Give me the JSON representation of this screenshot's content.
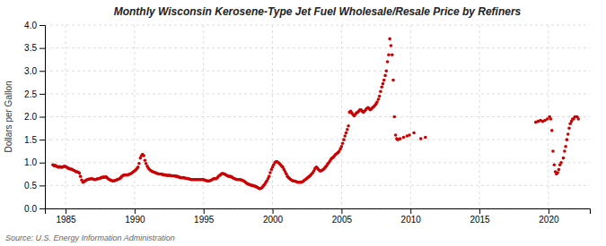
{
  "chart_data": {
    "type": "scatter",
    "title": "Monthly Wisconsin Kerosene-Type Jet Fuel Wholesale/Resale Price by Refiners",
    "y_label": "Dollars per Gallon",
    "annotations": [
      "Source: U.S. Energy Information Administration"
    ],
    "color": "#cc0000",
    "grid": true,
    "xlim": [
      1983.5,
      2023
    ],
    "ylim": [
      0.0,
      4.0
    ],
    "xticks": [
      1985,
      1990,
      1995,
      2000,
      2005,
      2010,
      2015,
      2020
    ],
    "yticks": [
      {
        "value": 0.0,
        "label": "0.0"
      },
      0.5,
      {
        "value": 1.0,
        "label": "1.0"
      },
      1.5,
      {
        "value": 2.0,
        "label": "2.0"
      },
      2.5,
      {
        "value": 3.0,
        "label": "3.0"
      },
      3.5,
      {
        "value": 4.0,
        "label": "4.0"
      }
    ],
    "x": [
      1984.08,
      1984.17,
      1984.25,
      1984.33,
      1984.42,
      1984.5,
      1984.58,
      1984.67,
      1984.75,
      1984.83,
      1984.92,
      1985.0,
      1985.08,
      1985.17,
      1985.25,
      1985.33,
      1985.42,
      1985.5,
      1985.58,
      1985.67,
      1985.75,
      1985.83,
      1985.92,
      1986.0,
      1986.08,
      1986.17,
      1986.25,
      1986.33,
      1986.42,
      1986.5,
      1986.58,
      1986.67,
      1986.75,
      1986.83,
      1986.92,
      1987.0,
      1987.08,
      1987.17,
      1987.25,
      1987.33,
      1987.42,
      1987.5,
      1987.58,
      1987.67,
      1987.75,
      1987.83,
      1987.92,
      1988.0,
      1988.08,
      1988.17,
      1988.25,
      1988.33,
      1988.42,
      1988.5,
      1988.58,
      1988.67,
      1988.75,
      1988.83,
      1988.92,
      1989.0,
      1989.08,
      1989.17,
      1989.25,
      1989.33,
      1989.42,
      1989.5,
      1989.58,
      1989.67,
      1989.75,
      1989.83,
      1989.92,
      1990.0,
      1990.08,
      1990.17,
      1990.25,
      1990.33,
      1990.42,
      1990.5,
      1990.58,
      1990.67,
      1990.75,
      1990.83,
      1990.92,
      1991.0,
      1991.08,
      1991.17,
      1991.25,
      1991.33,
      1991.42,
      1991.5,
      1991.58,
      1991.67,
      1991.75,
      1991.83,
      1991.92,
      1992.0,
      1992.08,
      1992.17,
      1992.25,
      1992.33,
      1992.42,
      1992.5,
      1992.58,
      1992.67,
      1992.75,
      1992.83,
      1992.92,
      1993.0,
      1993.08,
      1993.17,
      1993.25,
      1993.33,
      1993.42,
      1993.5,
      1993.58,
      1993.67,
      1993.75,
      1993.83,
      1993.92,
      1994.0,
      1994.08,
      1994.17,
      1994.25,
      1994.33,
      1994.42,
      1994.5,
      1994.58,
      1994.67,
      1994.75,
      1994.83,
      1994.92,
      1995.0,
      1995.08,
      1995.17,
      1995.25,
      1995.33,
      1995.42,
      1995.5,
      1995.58,
      1995.67,
      1995.75,
      1995.83,
      1995.92,
      1996.0,
      1996.08,
      1996.17,
      1996.25,
      1996.33,
      1996.42,
      1996.5,
      1996.58,
      1996.67,
      1996.75,
      1996.83,
      1996.92,
      1997.0,
      1997.08,
      1997.17,
      1997.25,
      1997.33,
      1997.42,
      1997.5,
      1997.58,
      1997.67,
      1997.75,
      1997.83,
      1997.92,
      1998.0,
      1998.08,
      1998.17,
      1998.25,
      1998.33,
      1998.42,
      1998.5,
      1998.58,
      1998.67,
      1998.75,
      1998.83,
      1998.92,
      1999.0,
      1999.08,
      1999.17,
      1999.25,
      1999.33,
      1999.42,
      1999.5,
      1999.58,
      1999.67,
      1999.75,
      1999.83,
      1999.92,
      2000.0,
      2000.08,
      2000.17,
      2000.25,
      2000.33,
      2000.42,
      2000.5,
      2000.58,
      2000.67,
      2000.75,
      2000.83,
      2000.92,
      2001.0,
      2001.08,
      2001.17,
      2001.25,
      2001.33,
      2001.42,
      2001.5,
      2001.58,
      2001.67,
      2001.75,
      2001.83,
      2001.92,
      2002.0,
      2002.08,
      2002.17,
      2002.25,
      2002.33,
      2002.42,
      2002.5,
      2002.58,
      2002.67,
      2002.75,
      2002.83,
      2002.92,
      2003.0,
      2003.08,
      2003.17,
      2003.25,
      2003.33,
      2003.42,
      2003.5,
      2003.58,
      2003.67,
      2003.75,
      2003.83,
      2003.92,
      2004.0,
      2004.08,
      2004.17,
      2004.25,
      2004.33,
      2004.42,
      2004.5,
      2004.58,
      2004.67,
      2004.75,
      2004.83,
      2004.92,
      2005.0,
      2005.08,
      2005.17,
      2005.25,
      2005.33,
      2005.42,
      2005.5,
      2005.58,
      2005.67,
      2005.75,
      2005.83,
      2005.92,
      2006.0,
      2006.08,
      2006.17,
      2006.25,
      2006.33,
      2006.42,
      2006.5,
      2006.58,
      2006.67,
      2006.75,
      2006.83,
      2006.92,
      2007.0,
      2007.08,
      2007.17,
      2007.25,
      2007.33,
      2007.42,
      2007.5,
      2007.58,
      2007.67,
      2007.75,
      2007.83,
      2007.92,
      2008.0,
      2008.08,
      2008.17,
      2008.25,
      2008.33,
      2008.42,
      2008.5,
      2008.58,
      2008.67,
      2008.75,
      2008.83,
      2008.92,
      2009.0,
      2009.08,
      2009.25,
      2009.5,
      2009.75,
      2009.92,
      2010.25,
      2010.75,
      2011.08,
      2019.08,
      2019.25,
      2019.42,
      2019.58,
      2019.75,
      2019.92,
      2020.08,
      2020.17,
      2020.25,
      2020.33,
      2020.42,
      2020.5,
      2020.58,
      2020.67,
      2020.75,
      2020.83,
      2020.92,
      2021.08,
      2021.17,
      2021.25,
      2021.33,
      2021.42,
      2021.5,
      2021.58,
      2021.67,
      2021.75,
      2021.83,
      2021.92,
      2022.08,
      2022.17
    ],
    "values": [
      0.95,
      0.93,
      0.94,
      0.92,
      0.91,
      0.9,
      0.91,
      0.9,
      0.9,
      0.91,
      0.92,
      0.91,
      0.9,
      0.88,
      0.87,
      0.86,
      0.86,
      0.85,
      0.83,
      0.82,
      0.8,
      0.8,
      0.79,
      0.77,
      0.7,
      0.62,
      0.57,
      0.58,
      0.6,
      0.62,
      0.63,
      0.64,
      0.64,
      0.65,
      0.65,
      0.64,
      0.63,
      0.63,
      0.64,
      0.65,
      0.65,
      0.66,
      0.67,
      0.68,
      0.68,
      0.68,
      0.69,
      0.67,
      0.65,
      0.63,
      0.62,
      0.61,
      0.6,
      0.6,
      0.61,
      0.62,
      0.63,
      0.64,
      0.65,
      0.67,
      0.7,
      0.72,
      0.73,
      0.73,
      0.73,
      0.73,
      0.74,
      0.75,
      0.76,
      0.78,
      0.8,
      0.82,
      0.84,
      0.87,
      0.9,
      0.98,
      1.1,
      1.15,
      1.18,
      1.15,
      1.05,
      0.98,
      0.92,
      0.88,
      0.85,
      0.83,
      0.81,
      0.8,
      0.79,
      0.78,
      0.77,
      0.76,
      0.75,
      0.75,
      0.75,
      0.74,
      0.74,
      0.73,
      0.73,
      0.72,
      0.72,
      0.72,
      0.72,
      0.71,
      0.71,
      0.71,
      0.71,
      0.7,
      0.7,
      0.69,
      0.68,
      0.67,
      0.67,
      0.67,
      0.67,
      0.66,
      0.66,
      0.65,
      0.65,
      0.64,
      0.63,
      0.63,
      0.63,
      0.63,
      0.63,
      0.63,
      0.63,
      0.63,
      0.63,
      0.63,
      0.63,
      0.63,
      0.62,
      0.61,
      0.6,
      0.6,
      0.6,
      0.61,
      0.62,
      0.64,
      0.65,
      0.65,
      0.65,
      0.67,
      0.7,
      0.72,
      0.74,
      0.76,
      0.76,
      0.75,
      0.74,
      0.72,
      0.71,
      0.7,
      0.7,
      0.69,
      0.68,
      0.66,
      0.65,
      0.64,
      0.63,
      0.63,
      0.63,
      0.63,
      0.62,
      0.61,
      0.6,
      0.58,
      0.56,
      0.54,
      0.53,
      0.52,
      0.51,
      0.5,
      0.5,
      0.49,
      0.48,
      0.47,
      0.46,
      0.44,
      0.43,
      0.44,
      0.46,
      0.49,
      0.52,
      0.56,
      0.6,
      0.65,
      0.7,
      0.78,
      0.85,
      0.9,
      0.95,
      1.0,
      1.02,
      1.02,
      1.0,
      0.98,
      0.95,
      0.92,
      0.9,
      0.85,
      0.8,
      0.75,
      0.7,
      0.67,
      0.65,
      0.63,
      0.61,
      0.6,
      0.6,
      0.59,
      0.58,
      0.57,
      0.57,
      0.57,
      0.57,
      0.58,
      0.6,
      0.62,
      0.64,
      0.66,
      0.68,
      0.7,
      0.72,
      0.75,
      0.78,
      0.82,
      0.87,
      0.9,
      0.88,
      0.85,
      0.82,
      0.82,
      0.83,
      0.85,
      0.87,
      0.9,
      0.93,
      0.97,
      1.0,
      1.04,
      1.08,
      1.1,
      1.12,
      1.15,
      1.18,
      1.2,
      1.22,
      1.25,
      1.3,
      1.35,
      1.42,
      1.5,
      1.58,
      1.65,
      1.72,
      1.8,
      2.1,
      2.12,
      2.08,
      2.05,
      2.02,
      2.05,
      2.08,
      2.1,
      2.12,
      2.15,
      2.15,
      2.12,
      2.1,
      2.12,
      2.15,
      2.18,
      2.2,
      2.18,
      2.15,
      2.17,
      2.2,
      2.22,
      2.25,
      2.28,
      2.32,
      2.38,
      2.45,
      2.55,
      2.65,
      2.72,
      2.8,
      2.9,
      3.0,
      3.2,
      3.35,
      3.7,
      3.55,
      3.35,
      2.8,
      2.0,
      1.6,
      1.52,
      1.5,
      1.52,
      1.55,
      1.58,
      1.6,
      1.65,
      1.52,
      1.55,
      1.88,
      1.9,
      1.92,
      1.9,
      1.92,
      1.95,
      2.0,
      1.95,
      1.7,
      1.25,
      0.95,
      0.8,
      0.75,
      0.78,
      0.85,
      0.95,
      1.0,
      1.1,
      1.25,
      1.35,
      1.5,
      1.62,
      1.75,
      1.85,
      1.9,
      1.95,
      1.95,
      2.0,
      2.0,
      1.95
    ]
  }
}
